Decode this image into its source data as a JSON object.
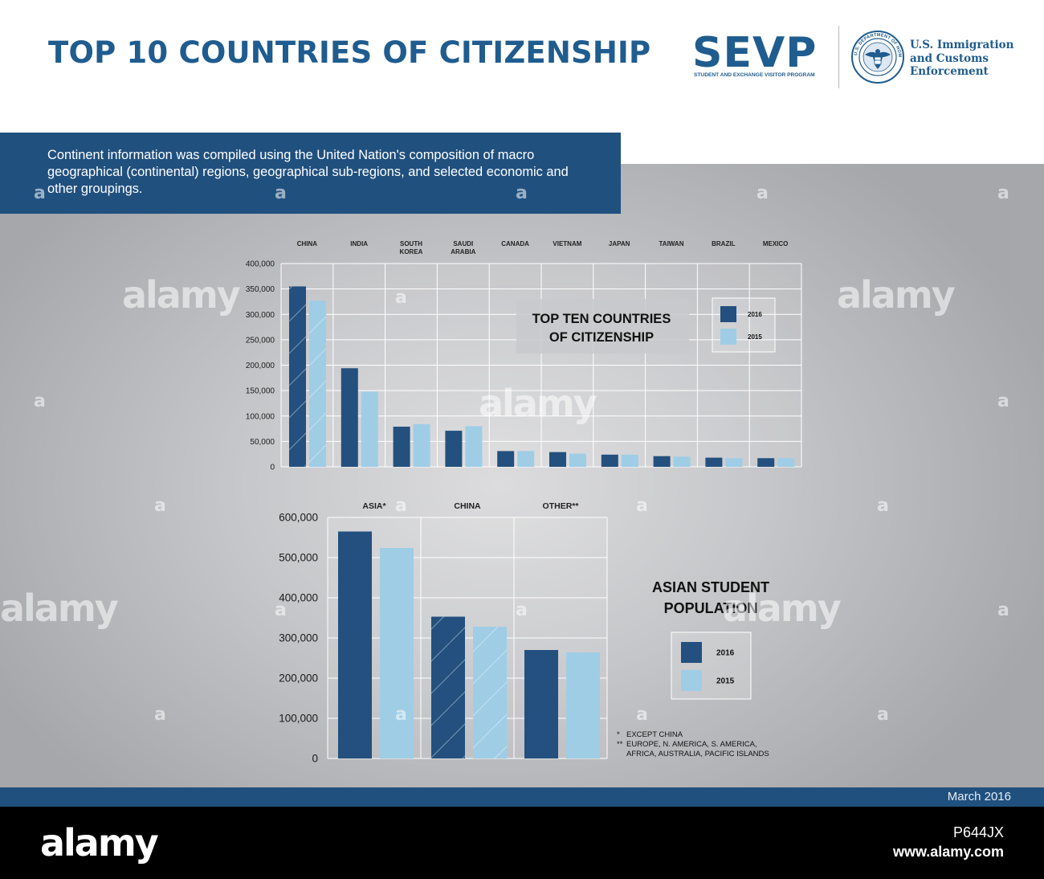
{
  "header": {
    "title": "TOP 10 COUNTRIES OF CITIZENSHIP",
    "sevp_logo": "SEVP",
    "sevp_subtitle": "STUDENT AND EXCHANGE VISITOR PROGRAM",
    "ice_lines": [
      "U.S. Immigration",
      "and Customs",
      "Enforcement"
    ],
    "seal_text": "U.S. DEPARTMENT OF HOMELAND SECURITY"
  },
  "note": {
    "text": "Continent information was compiled using the United Nation's composition of macro geographical (continental) regions, geographical sub-regions, and selected economic and other groupings."
  },
  "footer": {
    "date": "March 2016"
  },
  "stock": {
    "logo": "alamy",
    "image_id": "P644JX",
    "url": "www.alamy.com"
  },
  "watermark": {
    "word": "alamy",
    "letter": "a"
  },
  "colors": {
    "brand_blue": "#1f5c8f",
    "dark_series": "#23507e",
    "light_series": "#9fcde6",
    "banner": "#20507e"
  },
  "chart_data": [
    {
      "type": "bar",
      "title": "TOP TEN COUNTRIES OF CITIZENSHIP",
      "title_lines": [
        "TOP TEN COUNTRIES",
        "OF CITIZENSHIP"
      ],
      "categories": [
        "CHINA",
        "INDIA",
        "SOUTH KOREA",
        "SAUDI ARABIA",
        "CANADA",
        "VIETNAM",
        "JAPAN",
        "TAIWAN",
        "BRAZIL",
        "MEXICO"
      ],
      "category_lines": [
        [
          "CHINA"
        ],
        [
          "INDIA"
        ],
        [
          "SOUTH",
          "KOREA"
        ],
        [
          "SAUDI",
          "ARABIA"
        ],
        [
          "CANADA"
        ],
        [
          "VIETNAM"
        ],
        [
          "JAPAN"
        ],
        [
          "TAIWAN"
        ],
        [
          "BRAZIL"
        ],
        [
          "MEXICO"
        ]
      ],
      "series": [
        {
          "name": "2016",
          "color": "#23507e",
          "values": [
            355000,
            194000,
            79000,
            71000,
            31000,
            29000,
            24000,
            21000,
            18000,
            17000
          ]
        },
        {
          "name": "2015",
          "color": "#9fcde6",
          "values": [
            327000,
            148000,
            84000,
            80000,
            31000,
            26000,
            24000,
            20000,
            17000,
            17000
          ]
        }
      ],
      "hatched_category": "CHINA",
      "ylim": [
        0,
        400000
      ],
      "yticks": [
        0,
        50000,
        100000,
        150000,
        200000,
        250000,
        300000,
        350000,
        400000
      ],
      "ytick_labels": [
        "0",
        "50,000",
        "100,000",
        "150,000",
        "200,000",
        "250,000",
        "300,000",
        "350,000",
        "400,000"
      ],
      "grid": true,
      "legend_position": "top-right"
    },
    {
      "type": "bar",
      "title": "ASIAN STUDENT POPULATION",
      "title_lines": [
        "ASIAN STUDENT",
        "POPULATION"
      ],
      "categories": [
        "ASIA*",
        "CHINA",
        "OTHER**"
      ],
      "series": [
        {
          "name": "2016",
          "color": "#23507e",
          "values": [
            565000,
            353000,
            270000
          ]
        },
        {
          "name": "2015",
          "color": "#9fcde6",
          "values": [
            524000,
            328000,
            264000
          ]
        }
      ],
      "hatched_category": "CHINA",
      "ylim": [
        0,
        600000
      ],
      "yticks": [
        0,
        100000,
        200000,
        300000,
        400000,
        500000,
        600000
      ],
      "ytick_labels": [
        "0",
        "100,000",
        "200,000",
        "300,000",
        "400,000",
        "500,000",
        "600,000"
      ],
      "grid": true,
      "legend_position": "right",
      "footnotes": [
        {
          "mark": "*",
          "lines": [
            "EXCEPT CHINA"
          ]
        },
        {
          "mark": "**",
          "lines": [
            "EUROPE, N. AMERICA, S. AMERICA,",
            "AFRICA, AUSTRALIA, PACIFIC ISLANDS"
          ]
        }
      ]
    }
  ]
}
